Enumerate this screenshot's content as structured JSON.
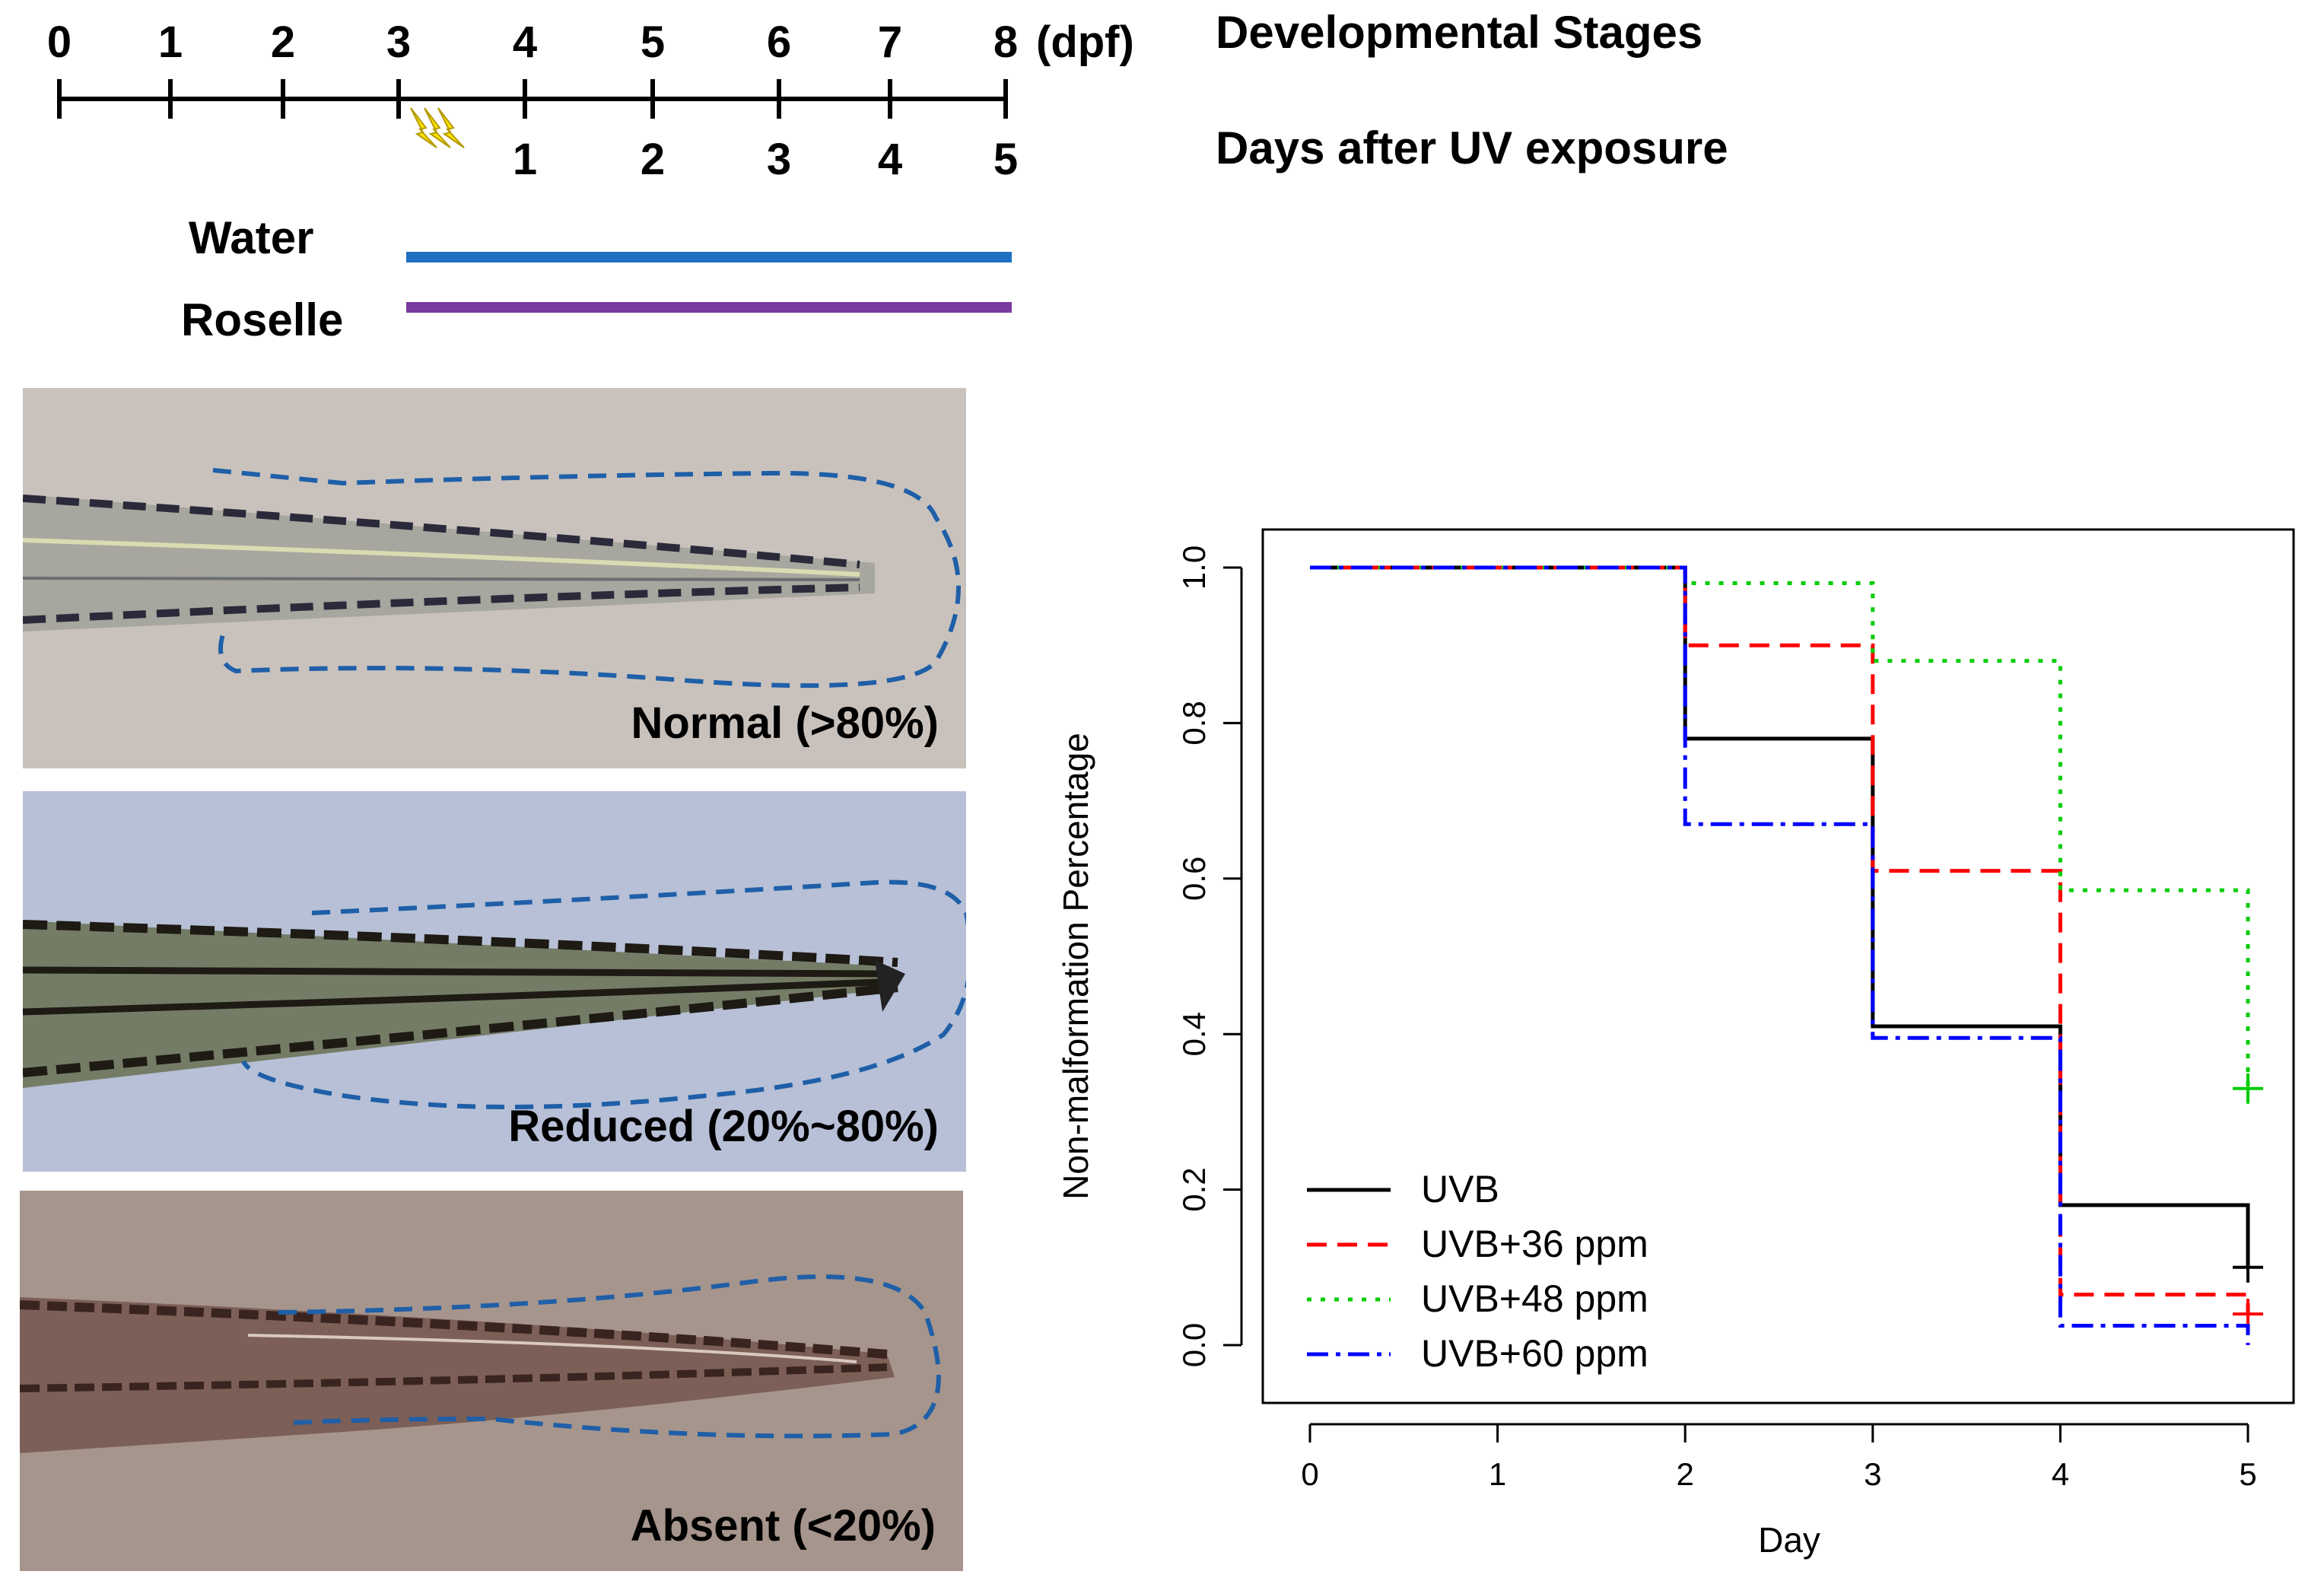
{
  "timeline": {
    "dpf_ticks": [
      "0",
      "1",
      "2",
      "3",
      "4",
      "5",
      "6",
      "7",
      "8"
    ],
    "unit_label": "(dpf)",
    "uv_ticks": [
      "1",
      "2",
      "3",
      "4",
      "5"
    ],
    "heading_stages": "Developmental Stages",
    "heading_uv": "Days after UV exposure",
    "uv_marker": "lightning-bolts",
    "treatments": [
      {
        "label": "Water",
        "color": "#1f6fc1"
      },
      {
        "label": "Roselle",
        "color": "#7a3aa0"
      }
    ]
  },
  "fin_panels": [
    {
      "label": "Normal (>80%)",
      "bg": "#c9c2bc"
    },
    {
      "label": "Reduced (20%~80%)",
      "bg": "#b7c0d6"
    },
    {
      "label": "Absent (<20%)",
      "bg": "#a6958c"
    }
  ],
  "outline_color": "#1f5fa8",
  "chart_data": {
    "type": "line",
    "subtype": "step (Kaplan-Meier)",
    "xlabel": "Day",
    "ylabel": "Non-malformation Percentage",
    "xlim": [
      0,
      5
    ],
    "ylim": [
      0,
      1.0
    ],
    "x_ticks": [
      "0",
      "1",
      "2",
      "3",
      "4",
      "5"
    ],
    "y_ticks": [
      "0.0",
      "0.2",
      "0.4",
      "0.6",
      "0.8",
      "1.0"
    ],
    "legend_position": "bottom-left",
    "series": [
      {
        "name": "UVB",
        "color": "#000000",
        "dash": "solid",
        "steps": [
          [
            0,
            1.0
          ],
          [
            2,
            0.78
          ],
          [
            3,
            0.41
          ],
          [
            4,
            0.18
          ],
          [
            5,
            0.1
          ]
        ],
        "censor": [
          5,
          0.1
        ]
      },
      {
        "name": "UVB+36 ppm",
        "color": "#ff0000",
        "dash": "dashed",
        "steps": [
          [
            0,
            1.0
          ],
          [
            2,
            0.9
          ],
          [
            3,
            0.61
          ],
          [
            4,
            0.065
          ],
          [
            5,
            0.04
          ]
        ],
        "censor": [
          5,
          0.04
        ]
      },
      {
        "name": "UVB+48 ppm",
        "color": "#00cc00",
        "dash": "dotted",
        "steps": [
          [
            0,
            1.0
          ],
          [
            2,
            0.98
          ],
          [
            3,
            0.88
          ],
          [
            4,
            0.585
          ],
          [
            5,
            0.33
          ]
        ],
        "censor": [
          5,
          0.33
        ]
      },
      {
        "name": "UVB+60 ppm",
        "color": "#0000ff",
        "dash": "dashdot",
        "steps": [
          [
            0,
            1.0
          ],
          [
            2,
            0.67
          ],
          [
            3,
            0.395
          ],
          [
            4,
            0.025
          ],
          [
            5,
            0.0
          ]
        ],
        "censor": null
      }
    ]
  }
}
